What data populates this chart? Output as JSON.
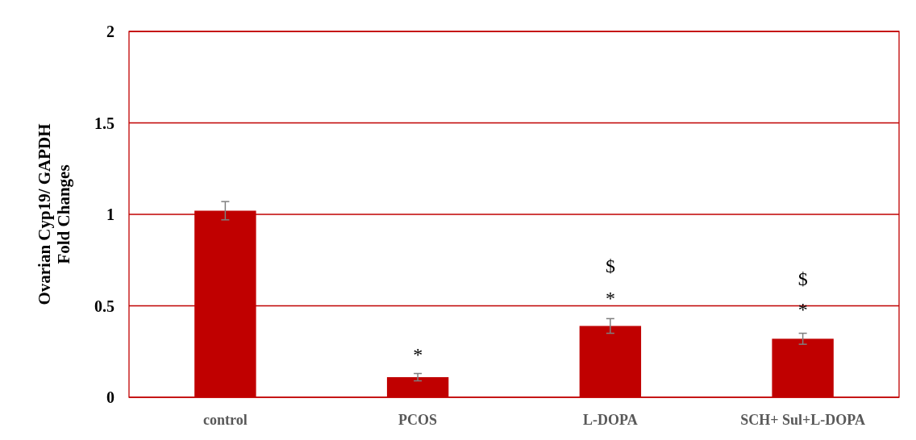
{
  "chart_data": {
    "type": "bar",
    "ylabel": "Ovarian Cyp19/ GAPDH\nFold Changes",
    "categories": [
      "control",
      "PCOS",
      "L-DOPA",
      "SCH+ Sul+L-DOPA"
    ],
    "values": [
      1.02,
      0.11,
      0.39,
      0.32
    ],
    "color": "#c00000",
    "errors": [
      0.05,
      0.02,
      0.04,
      0.03
    ],
    "ylim": [
      0,
      2
    ],
    "yticks": [
      0,
      0.5,
      1,
      1.5,
      2
    ],
    "grid": "y",
    "annotations": [
      "*",
      "*",
      "$",
      "*",
      "$"
    ]
  }
}
